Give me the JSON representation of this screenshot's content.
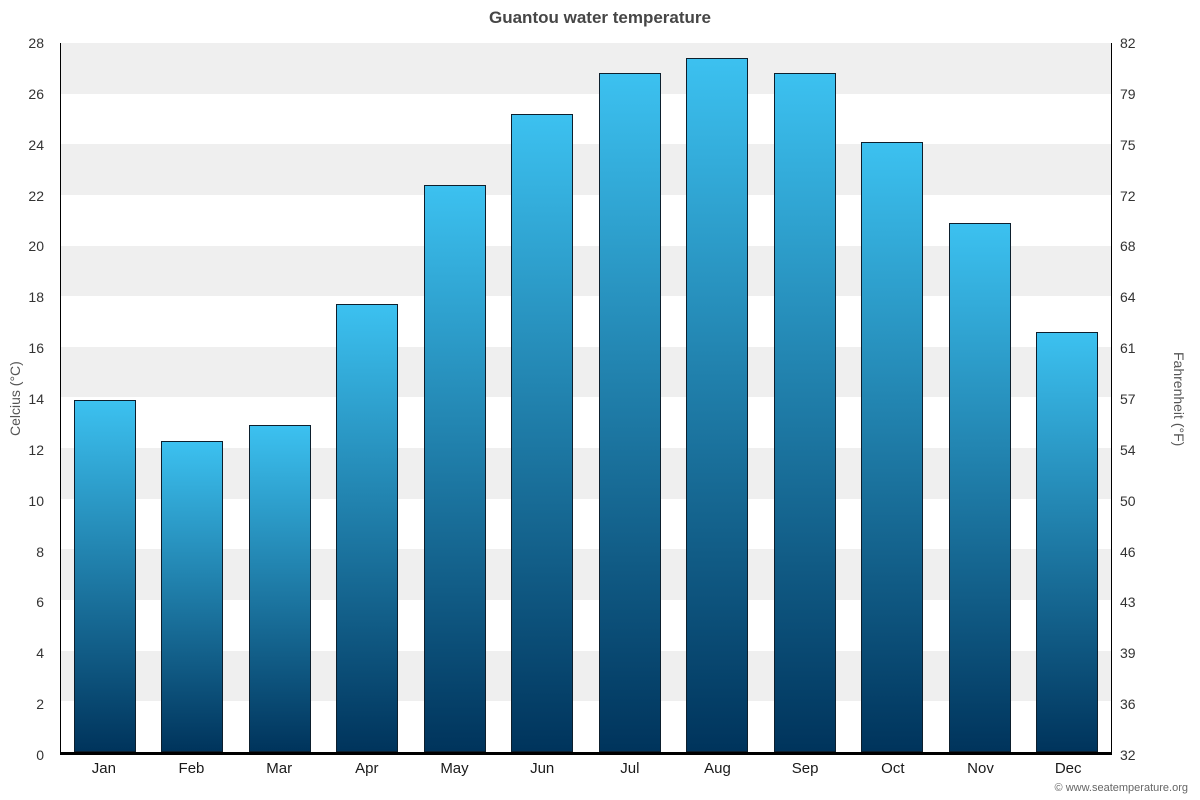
{
  "title": "Guantou water temperature",
  "copyright": "© www.seatemperature.org",
  "chart_data": {
    "type": "bar",
    "categories": [
      "Jan",
      "Feb",
      "Mar",
      "Apr",
      "May",
      "Jun",
      "Jul",
      "Aug",
      "Sep",
      "Oct",
      "Nov",
      "Dec"
    ],
    "values": [
      13.9,
      12.3,
      12.9,
      17.7,
      22.4,
      25.2,
      26.8,
      27.4,
      26.8,
      24.1,
      20.9,
      16.6
    ],
    "ylabel_left": "Celcius (°C)",
    "ylabel_right": "Fahrenheit (°F)",
    "ylim": [
      0,
      28
    ],
    "ytick_step": 2,
    "yticks_left": [
      0,
      2,
      4,
      6,
      8,
      10,
      12,
      14,
      16,
      18,
      20,
      22,
      24,
      26,
      28
    ],
    "yticks_right": [
      32,
      36,
      39,
      43,
      46,
      50,
      54,
      57,
      61,
      64,
      68,
      72,
      75,
      79,
      82
    ],
    "grid": "alternating-horizontal-bands",
    "legend": "none",
    "band_color": "#efefef",
    "bar_color_top": "#3cc1f0",
    "bar_color_bottom": "#00345c",
    "bar_border_color": "#0d1f2d"
  }
}
